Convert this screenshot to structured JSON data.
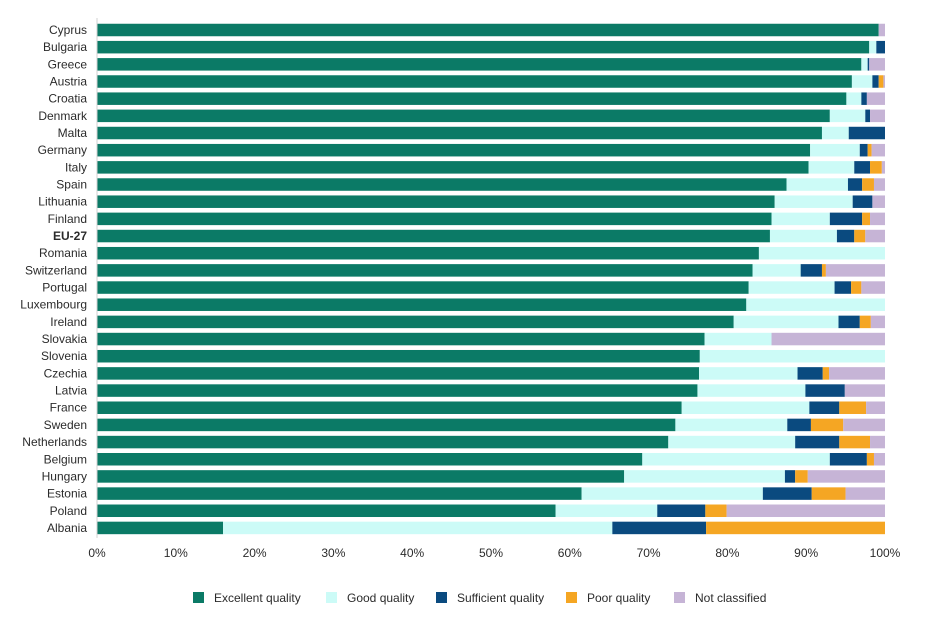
{
  "chart_data": {
    "type": "bar",
    "orientation": "horizontal",
    "stacked": true,
    "categories": [
      "Cyprus",
      "Bulgaria",
      "Greece",
      "Austria",
      "Croatia",
      "Denmark",
      "Malta",
      "Germany",
      "Italy",
      "Spain",
      "Lithuania",
      "Finland",
      "EU-27",
      "Romania",
      "Switzerland",
      "Portugal",
      "Luxembourg",
      "Ireland",
      "Slovakia",
      "Slovenia",
      "Czechia",
      "Latvia",
      "France",
      "Sweden",
      "Netherlands",
      "Belgium",
      "Hungary",
      "Estonia",
      "Poland",
      "Albania"
    ],
    "highlight_category": "EU-27",
    "series": [
      {
        "name": "Excellent quality",
        "color": "#0b7a66",
        "values": [
          99.2,
          98.0,
          97.0,
          95.8,
          95.1,
          93.0,
          92.0,
          90.5,
          90.3,
          87.5,
          86.0,
          85.6,
          85.4,
          84.0,
          83.2,
          82.7,
          82.4,
          80.8,
          77.1,
          76.5,
          76.4,
          76.2,
          74.2,
          73.4,
          72.5,
          69.2,
          66.9,
          61.5,
          58.2,
          16.0
        ]
      },
      {
        "name": "Good quality",
        "color": "#ccfbf7",
        "values": [
          0.0,
          0.9,
          0.8,
          2.6,
          1.9,
          4.5,
          3.4,
          6.3,
          5.8,
          7.8,
          9.9,
          7.4,
          8.5,
          16.0,
          6.1,
          10.9,
          17.6,
          13.3,
          8.5,
          23.5,
          12.5,
          13.7,
          16.2,
          14.2,
          16.1,
          23.8,
          20.4,
          23.0,
          12.9,
          49.4
        ]
      },
      {
        "name": "Sufficient quality",
        "color": "#0a4a7f",
        "values": [
          0.0,
          1.1,
          0.2,
          0.8,
          0.7,
          0.6,
          4.6,
          1.0,
          2.0,
          1.8,
          2.5,
          4.1,
          2.2,
          0.0,
          2.7,
          2.1,
          0.0,
          2.7,
          0.0,
          0.0,
          3.2,
          5.0,
          3.8,
          3.0,
          5.6,
          4.7,
          1.3,
          6.2,
          6.1,
          11.9
        ]
      },
      {
        "name": "Poor quality",
        "color": "#f5a623",
        "values": [
          0.0,
          0.0,
          0.0,
          0.6,
          0.0,
          0.0,
          0.0,
          0.5,
          1.5,
          1.5,
          0.0,
          1.0,
          1.4,
          0.0,
          0.5,
          1.3,
          0.0,
          1.4,
          0.0,
          0.0,
          0.8,
          0.0,
          3.4,
          4.1,
          3.9,
          0.9,
          1.6,
          4.3,
          2.7,
          22.7
        ]
      },
      {
        "name": "Not classified",
        "color": "#c6b4d6",
        "values": [
          0.8,
          0.0,
          2.0,
          0.2,
          2.3,
          1.9,
          0.0,
          1.7,
          0.4,
          1.4,
          1.6,
          1.9,
          2.5,
          0.0,
          7.5,
          3.0,
          0.0,
          1.8,
          14.4,
          0.0,
          7.1,
          5.1,
          2.4,
          5.3,
          1.9,
          1.4,
          9.8,
          5.0,
          20.1,
          0.0
        ]
      }
    ],
    "x_axis": {
      "ticks": [
        "0%",
        "10%",
        "20%",
        "30%",
        "40%",
        "50%",
        "60%",
        "70%",
        "80%",
        "90%",
        "100%"
      ],
      "range": [
        0,
        100
      ]
    },
    "legend": {
      "position": "bottom"
    },
    "grid": false
  }
}
